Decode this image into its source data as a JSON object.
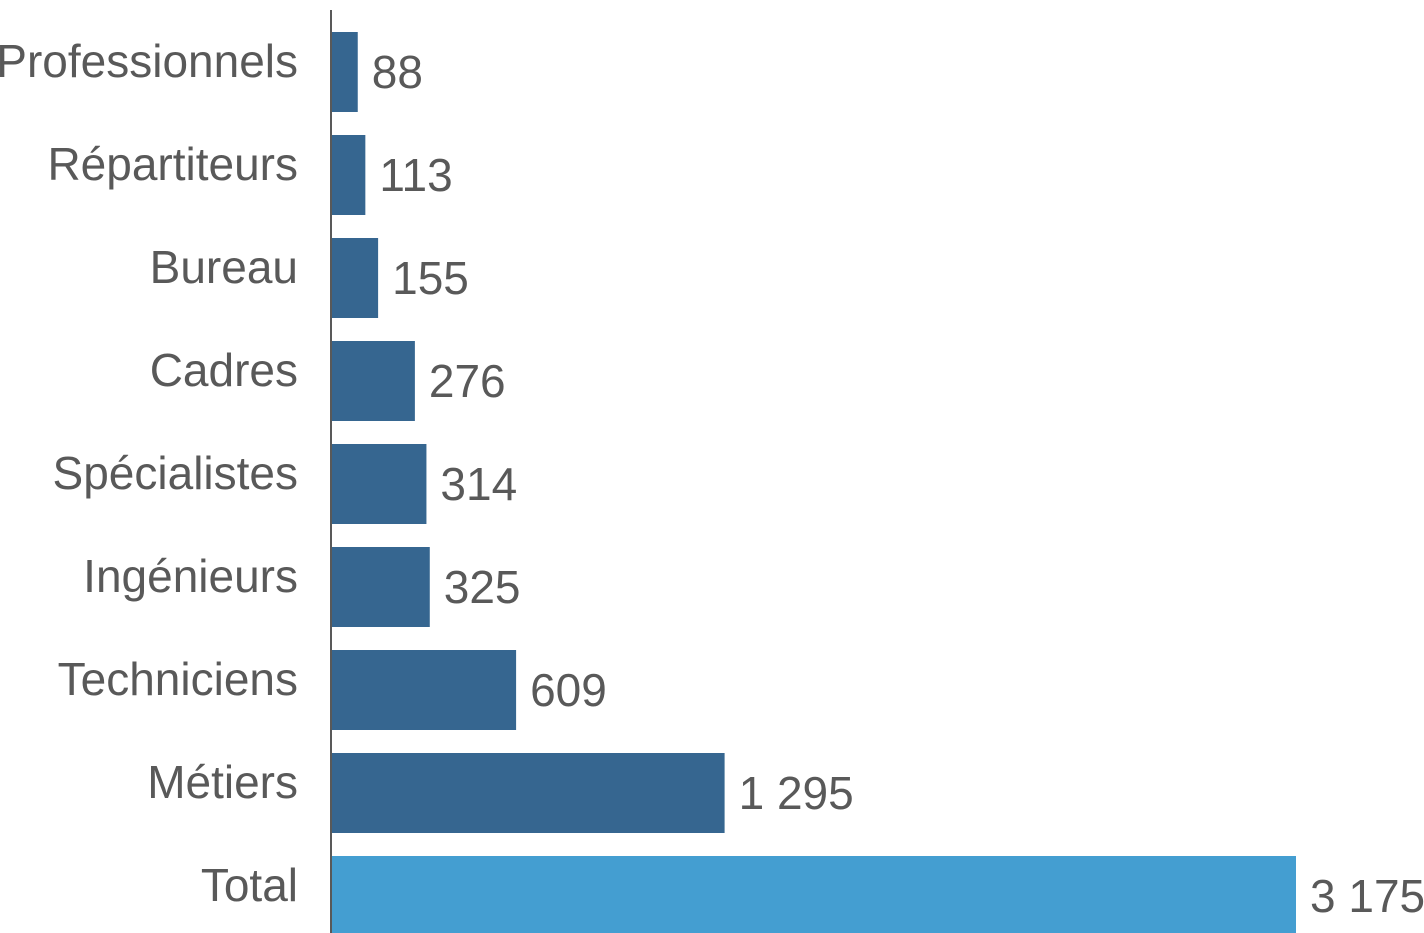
{
  "chart_data": {
    "type": "bar",
    "orientation": "horizontal",
    "categories": [
      "Professionnels",
      "Répartiteurs",
      "Bureau",
      "Cadres",
      "Spécialistes",
      "Ingénieurs",
      "Techniciens",
      "Métiers",
      "Total"
    ],
    "values": [
      88,
      113,
      155,
      276,
      314,
      325,
      609,
      1295,
      3175
    ],
    "value_labels": [
      "88",
      "113",
      "155",
      "276",
      "314",
      "325",
      "609",
      "1 295",
      "3 175"
    ],
    "xlim": [
      0,
      3175
    ],
    "grid": false,
    "legend": "none",
    "colors": {
      "default_bar": "#366690",
      "highlight_bar": "#449ED1",
      "text": "#595959",
      "axis": "#595959"
    },
    "highlight_category": "Total"
  }
}
